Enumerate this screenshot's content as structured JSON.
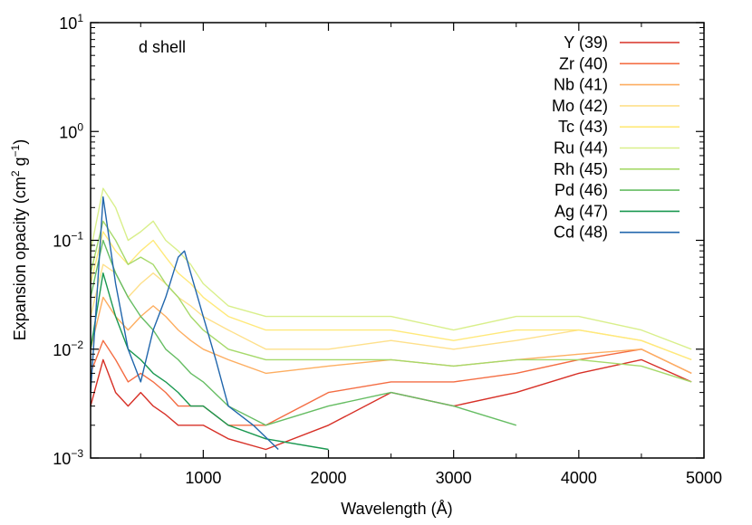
{
  "chart_data": {
    "type": "line",
    "annotation": "d shell",
    "xlabel": "Wavelength (Å)",
    "ylabel": {
      "prefix": "Expansion opacity (cm",
      "sup1": "2",
      "mid": " g",
      "sup2": "−1",
      "suffix": ")"
    },
    "xlim": [
      100,
      5000
    ],
    "ylim": [
      0.001,
      10
    ],
    "yscale": "log",
    "grid": false,
    "legend_position": "top-right",
    "x_ticks": [
      {
        "value": 1000,
        "label": "1000"
      },
      {
        "value": 2000,
        "label": "2000"
      },
      {
        "value": 3000,
        "label": "3000"
      },
      {
        "value": 4000,
        "label": "4000"
      },
      {
        "value": 5000,
        "label": "5000"
      }
    ],
    "y_ticks": [
      {
        "value": 0.001,
        "base": "10",
        "exp": "−3"
      },
      {
        "value": 0.01,
        "base": "10",
        "exp": "−2"
      },
      {
        "value": 0.1,
        "base": "10",
        "exp": "−1"
      },
      {
        "value": 1,
        "base": "10",
        "exp": "0"
      },
      {
        "value": 10,
        "base": "10",
        "exp": "1"
      }
    ],
    "series": [
      {
        "name": "Y  (39)",
        "color": "#d73027",
        "x": [
          100,
          200,
          300,
          400,
          500,
          600,
          700,
          800,
          900,
          1000,
          1200,
          1500,
          2000,
          2500,
          3000,
          3500,
          4000,
          4500,
          4900
        ],
        "y": [
          0.003,
          0.008,
          0.004,
          0.003,
          0.004,
          0.003,
          0.0025,
          0.002,
          0.002,
          0.002,
          0.0015,
          0.0012,
          0.002,
          0.004,
          0.003,
          0.004,
          0.006,
          0.008,
          0.005
        ]
      },
      {
        "name": "Zr (40)",
        "color": "#f46d43",
        "x": [
          100,
          200,
          300,
          400,
          500,
          600,
          700,
          800,
          900,
          1000,
          1200,
          1500,
          2000,
          2500,
          3000,
          3500,
          4000,
          4500,
          4900
        ],
        "y": [
          0.006,
          0.012,
          0.008,
          0.005,
          0.006,
          0.005,
          0.004,
          0.003,
          0.003,
          0.003,
          0.002,
          0.002,
          0.004,
          0.005,
          0.005,
          0.006,
          0.008,
          0.01,
          0.006
        ]
      },
      {
        "name": "Nb (41)",
        "color": "#fdae61",
        "x": [
          100,
          200,
          300,
          400,
          500,
          600,
          700,
          800,
          900,
          1000,
          1200,
          1500,
          2000,
          2500,
          3000,
          3500,
          4000,
          4500,
          4900
        ],
        "y": [
          0.01,
          0.03,
          0.02,
          0.015,
          0.02,
          0.025,
          0.02,
          0.015,
          0.012,
          0.01,
          0.008,
          0.006,
          0.007,
          0.008,
          0.007,
          0.008,
          0.009,
          0.01,
          0.006
        ]
      },
      {
        "name": "Mo (42)",
        "color": "#fee08b",
        "x": [
          100,
          200,
          300,
          400,
          500,
          600,
          700,
          800,
          900,
          1000,
          1200,
          1500,
          2000,
          2500,
          3000,
          3500,
          4000,
          4500,
          4900
        ],
        "y": [
          0.02,
          0.06,
          0.05,
          0.03,
          0.04,
          0.05,
          0.04,
          0.03,
          0.025,
          0.02,
          0.015,
          0.01,
          0.01,
          0.012,
          0.01,
          0.012,
          0.015,
          0.012,
          0.008
        ]
      },
      {
        "name": "Tc (43)",
        "color": "#ffe97a",
        "x": [
          100,
          200,
          300,
          400,
          500,
          600,
          700,
          800,
          900,
          1000,
          1200,
          1500,
          2000,
          2500,
          3000,
          3500,
          4000,
          4500,
          4900
        ],
        "y": [
          0.04,
          0.12,
          0.08,
          0.06,
          0.08,
          0.1,
          0.07,
          0.05,
          0.04,
          0.03,
          0.02,
          0.015,
          0.015,
          0.015,
          0.012,
          0.015,
          0.015,
          0.012,
          0.008
        ]
      },
      {
        "name": "Ru (44)",
        "color": "#d9ef8b",
        "x": [
          100,
          200,
          300,
          400,
          500,
          600,
          700,
          800,
          900,
          1000,
          1200,
          1500,
          2000,
          2500,
          3000,
          3500,
          4000,
          4500,
          4900
        ],
        "y": [
          0.08,
          0.3,
          0.2,
          0.1,
          0.12,
          0.15,
          0.1,
          0.08,
          0.06,
          0.04,
          0.025,
          0.02,
          0.02,
          0.02,
          0.015,
          0.02,
          0.02,
          0.015,
          0.01
        ]
      },
      {
        "name": "Rh (45)",
        "color": "#a6d96a",
        "x": [
          100,
          200,
          300,
          400,
          500,
          600,
          700,
          800,
          900,
          1000,
          1200,
          1500,
          2000,
          2500,
          3000,
          3500,
          4000,
          4500,
          4900
        ],
        "y": [
          0.05,
          0.15,
          0.1,
          0.06,
          0.07,
          0.06,
          0.04,
          0.03,
          0.02,
          0.015,
          0.01,
          0.008,
          0.008,
          0.008,
          0.007,
          0.008,
          0.008,
          0.007,
          0.005
        ]
      },
      {
        "name": "Pd (46)",
        "color": "#66bd63",
        "x": [
          100,
          200,
          300,
          400,
          500,
          600,
          700,
          800,
          900,
          1000,
          1200,
          1500,
          2000,
          2500,
          3000,
          3500
        ],
        "y": [
          0.03,
          0.1,
          0.05,
          0.03,
          0.02,
          0.015,
          0.01,
          0.008,
          0.006,
          0.005,
          0.003,
          0.002,
          0.003,
          0.004,
          0.003,
          0.002
        ]
      },
      {
        "name": "Ag (47)",
        "color": "#1a9850",
        "x": [
          100,
          200,
          300,
          400,
          500,
          600,
          700,
          800,
          900,
          1000,
          1200,
          1500,
          2000
        ],
        "y": [
          0.01,
          0.05,
          0.02,
          0.01,
          0.008,
          0.006,
          0.005,
          0.004,
          0.003,
          0.003,
          0.002,
          0.0015,
          0.0012
        ]
      },
      {
        "name": "Cd (48)",
        "color": "#2166ac",
        "x": [
          100,
          150,
          200,
          250,
          300,
          400,
          500,
          600,
          700,
          800,
          850,
          900,
          1000,
          1100,
          1200,
          1400,
          1600
        ],
        "y": [
          0.004,
          0.03,
          0.25,
          0.1,
          0.04,
          0.01,
          0.005,
          0.015,
          0.03,
          0.07,
          0.08,
          0.05,
          0.02,
          0.008,
          0.003,
          0.002,
          0.0012
        ]
      }
    ]
  }
}
